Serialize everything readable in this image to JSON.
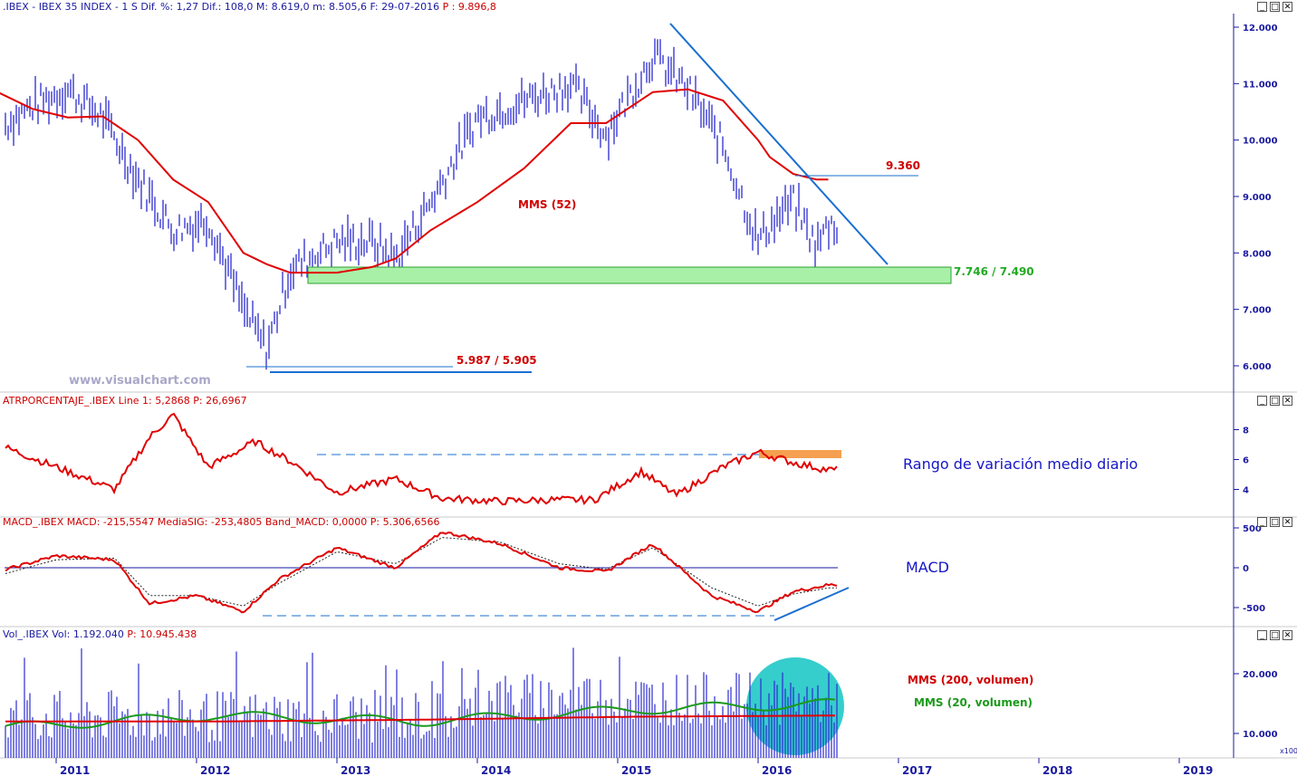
{
  "colors": {
    "price_bars": "#2b2bd0",
    "mms52": "#e00000",
    "trendline": "#1a6fd1",
    "support_zone_fill": "#a8f0a8",
    "support_zone_border": "#2fa02f",
    "atr_line": "#e00000",
    "atr_highlight": "#f5a050",
    "macd_line": "#e00000",
    "signal_line": "#222222",
    "volume_bars": "#2b2bd0",
    "vol_mms200": "#e00000",
    "vol_mms20": "#1a9a1a",
    "circle_highlight": "#20c8c8",
    "axis_text": "#1a1aa0",
    "annotation_red": "#d00000",
    "annotation_green": "#22aa22",
    "annotation_blue": "#1515c8"
  },
  "icons": [
    "minimize-icon",
    "maximize-icon",
    "close-icon"
  ],
  "buttons": {
    "minimize": "_",
    "maximize": "□",
    "close": "✕"
  },
  "panels": {
    "price": {
      "title_main": ".IBEX - IBEX 35 INDEX - 1 S  Dif. %: 1,27  Dif.: 108,0  M: 8.619,0  m: 8.505,6  F: 29-07-2016",
      "title_p": "P : 9.896,8",
      "watermark": "www.visualchart.com",
      "labels": {
        "mms": "MMS (52)",
        "resistance": "9.360",
        "support": "7.746 / 7.490",
        "low": "5.987 / 5.905"
      }
    },
    "atr": {
      "title_main": "ATRPORCENTAJE_.IBEX Line 1: 5,2868",
      "title_p": "P: 26,6967",
      "annotation": "Rango de variación medio diario"
    },
    "macd": {
      "title_main": "MACD_.IBEX MACD: -215,5547  MediaSIG: -253,4805  Band_MACD: 0,0000",
      "title_p": "P: 5.306,6566",
      "annotation": "MACD"
    },
    "volume": {
      "title_main": "Vol_.IBEX Vol: 1.192.040",
      "title_p": "P: 10.945.438",
      "label_mms200": "MMS (200, volumen)",
      "label_mms20": "MMS (20, volumen)",
      "scale_note": "x100"
    }
  },
  "x_axis": {
    "years": [
      "2011",
      "2012",
      "2013",
      "2014",
      "2015",
      "2016",
      "2017",
      "2018",
      "2019"
    ]
  },
  "chart_data": [
    {
      "type": "line",
      "name": "price",
      "y_ticks": [
        "6.000",
        "7.000",
        "8.000",
        "9.000",
        "10.000",
        "11.000",
        "12.000"
      ],
      "x": [
        "2010-08",
        "2010-11",
        "2011-02",
        "2011-05",
        "2011-08",
        "2011-11",
        "2012-02",
        "2012-05",
        "2012-07",
        "2012-09",
        "2013-01",
        "2013-04",
        "2013-06",
        "2013-09",
        "2014-01",
        "2014-05",
        "2014-09",
        "2014-12",
        "2015-04",
        "2015-07",
        "2015-10",
        "2016-01",
        "2016-02",
        "2016-04",
        "2016-06",
        "2016-07"
      ],
      "series": [
        {
          "values": [
            10200,
            10600,
            10900,
            10400,
            9300,
            8400,
            8600,
            7000,
            6300,
            7700,
            8200,
            8200,
            7900,
            8900,
            10400,
            10700,
            11000,
            10100,
            11500,
            10900,
            9900,
            8200,
            8500,
            8900,
            8100,
            8500
          ]
        },
        {
          "name": "MMS (52)",
          "values": [
            10850,
            10550,
            10400,
            10420,
            10000,
            9300,
            8900,
            8000,
            7800,
            7650,
            7650,
            7750,
            7900,
            8400,
            8900,
            9500,
            10300,
            10300,
            10850,
            10900,
            10700,
            10000,
            9700,
            9400,
            9300,
            9300
          ]
        }
      ],
      "annotations": [
        "9.360",
        "7.746 / 7.490",
        "5.987 / 5.905",
        "MMS (52)"
      ]
    },
    {
      "type": "line",
      "name": "ATRPORCENTAJE",
      "y_ticks": [
        "4",
        "6",
        "8"
      ],
      "x": [
        "2010-08",
        "2011-01",
        "2011-06",
        "2011-09",
        "2011-11",
        "2012-02",
        "2012-06",
        "2012-09",
        "2013-01",
        "2013-06",
        "2013-10",
        "2014-03",
        "2014-07",
        "2014-11",
        "2015-03",
        "2015-06",
        "2015-10",
        "2016-01",
        "2016-04",
        "2016-07"
      ],
      "values": [
        7.0,
        5.5,
        4.0,
        7.5,
        9.0,
        5.5,
        7.2,
        5.9,
        3.8,
        4.7,
        3.4,
        3.2,
        3.3,
        3.3,
        5.2,
        3.6,
        5.5,
        6.5,
        5.8,
        5.3
      ]
    },
    {
      "type": "line",
      "name": "MACD",
      "y_ticks": [
        "-500",
        "0",
        "500"
      ],
      "x": [
        "2010-08",
        "2011-01",
        "2011-06",
        "2011-09",
        "2012-01",
        "2012-05",
        "2012-08",
        "2013-01",
        "2013-06",
        "2013-10",
        "2014-03",
        "2014-08",
        "2014-12",
        "2015-04",
        "2015-09",
        "2016-01",
        "2016-04",
        "2016-07"
      ],
      "series": [
        {
          "name": "MACD",
          "values": [
            -50,
            150,
            100,
            -450,
            -350,
            -550,
            -150,
            250,
            0,
            450,
            300,
            0,
            -50,
            300,
            -350,
            -550,
            -300,
            -215
          ]
        },
        {
          "name": "MediaSIG",
          "values": [
            -100,
            100,
            120,
            -350,
            -350,
            -480,
            -200,
            200,
            50,
            380,
            320,
            50,
            -20,
            250,
            -250,
            -480,
            -330,
            -253
          ]
        }
      ]
    },
    {
      "type": "bar",
      "name": "Vol",
      "y_ticks": [
        "10.000",
        "20.000"
      ],
      "y_unit": "x100",
      "series": [
        {
          "name": "MMS (200, volumen)",
          "values": [
            12000,
            12000,
            12300,
            12800,
            13000
          ]
        },
        {
          "name": "MMS (20, volumen)",
          "values": [
            11000,
            13000,
            12000,
            14000,
            15000
          ]
        }
      ]
    }
  ]
}
